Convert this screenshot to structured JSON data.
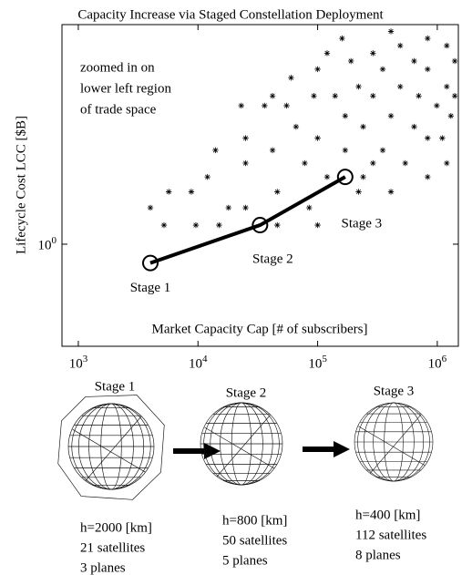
{
  "chart_data": {
    "type": "scatter",
    "title": "Capacity Increase via Staged Constellation Deployment",
    "xlabel": "Market Capacity Cap [# of subscribers]",
    "ylabel": "Lifecycle Cost LCC [$B]",
    "annotation": [
      "zoomed in on",
      "lower left region",
      "of trade space"
    ],
    "xscale": "log",
    "yscale": "log",
    "xlim": [
      730,
      1500000
    ],
    "ylim": [
      0.6,
      3
    ],
    "xticks": [
      {
        "value": 1000,
        "label": "10^3"
      },
      {
        "value": 10000,
        "label": "10^4"
      },
      {
        "value": 100000,
        "label": "10^5"
      },
      {
        "value": 1000000,
        "label": "10^6"
      }
    ],
    "yticks": [
      {
        "value": 1,
        "label": "10^0"
      }
    ],
    "points": {
      "color": "#000",
      "x": [
        160000,
        830000,
        1200000,
        490000,
        290000,
        190000,
        640000,
        1400000,
        100000,
        350000,
        830000,
        60000,
        220000,
        490000,
        1200000,
        42000,
        140000,
        700000,
        93000,
        290000,
        990000,
        36000,
        410000,
        170000,
        1300000,
        66000,
        640000,
        240000,
        25000,
        100000,
        830000,
        42000,
        350000,
        14000,
        170000,
        1200000,
        78000,
        540000,
        25000,
        12000,
        240000,
        120000,
        830000,
        46000,
        8800,
        18000,
        85000,
        410000,
        25000,
        5700,
        4000,
        100000,
        220000,
        290000,
        1100000,
        1400000,
        120000,
        410000,
        23000,
        55000,
        15000,
        46000,
        5200,
        9600
      ],
      "y": [
        2.8,
        2.8,
        2.7,
        2.7,
        2.6,
        2.5,
        2.5,
        2.5,
        2.4,
        2.4,
        2.4,
        2.3,
        2.2,
        2.2,
        2.2,
        2.1,
        2.1,
        2.1,
        2.1,
        2.1,
        2.0,
        2.0,
        1.9,
        1.9,
        1.9,
        1.8,
        1.8,
        1.8,
        1.7,
        1.7,
        1.7,
        1.6,
        1.6,
        1.6,
        1.6,
        1.5,
        1.5,
        1.5,
        1.5,
        1.4,
        1.4,
        1.4,
        1.4,
        1.3,
        1.3,
        1.2,
        1.2,
        1.3,
        1.2,
        1.3,
        1.2,
        1.1,
        1.3,
        1.5,
        1.7,
        2.1,
        2.6,
        2.9,
        2.0,
        2.0,
        1.1,
        1.1,
        1.1,
        1.1
      ]
    },
    "stages": {
      "color": "#000",
      "labels": [
        "Stage 1",
        "Stage 2",
        "Stage 3"
      ],
      "x": [
        4000,
        33000,
        170000
      ],
      "y": [
        0.91,
        1.1,
        1.4
      ]
    }
  },
  "constellations": [
    {
      "title": "Stage 1",
      "lines": [
        "h=2000 [km]",
        "21 satellites",
        "3 planes"
      ]
    },
    {
      "title": "Stage 2",
      "lines": [
        "h=800 [km]",
        "50 satellites",
        "5 planes"
      ]
    },
    {
      "title": "Stage 3",
      "lines": [
        "h=400 [km]",
        "112 satellites",
        "8 planes"
      ]
    }
  ]
}
